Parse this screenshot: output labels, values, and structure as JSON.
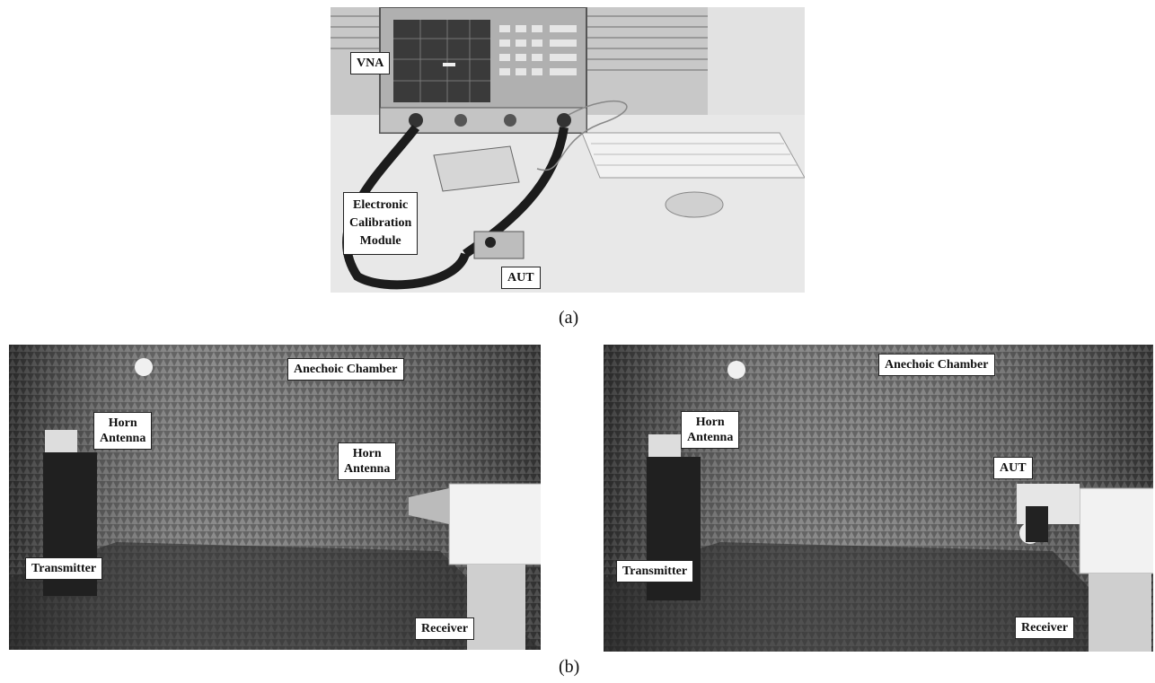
{
  "panel_a": {
    "labels": {
      "vna": "VNA",
      "ecal_line1": "Electronic",
      "ecal_line2": "Calibration",
      "ecal_line3": "Module",
      "aut": "AUT"
    },
    "caption": "(a)"
  },
  "panel_b_left": {
    "labels": {
      "chamber": "Anechoic Chamber",
      "horn_tx_line1": "Horn",
      "horn_tx_line2": "Antenna",
      "horn_rx_line1": "Horn",
      "horn_rx_line2": "Antenna",
      "transmitter": "Transmitter",
      "receiver": "Receiver"
    }
  },
  "panel_b_right": {
    "labels": {
      "chamber": "Anechoic Chamber",
      "horn_tx_line1": "Horn",
      "horn_tx_line2": "Antenna",
      "aut": "AUT",
      "transmitter": "Transmitter",
      "receiver": "Receiver"
    }
  },
  "caption_b": "(b)"
}
